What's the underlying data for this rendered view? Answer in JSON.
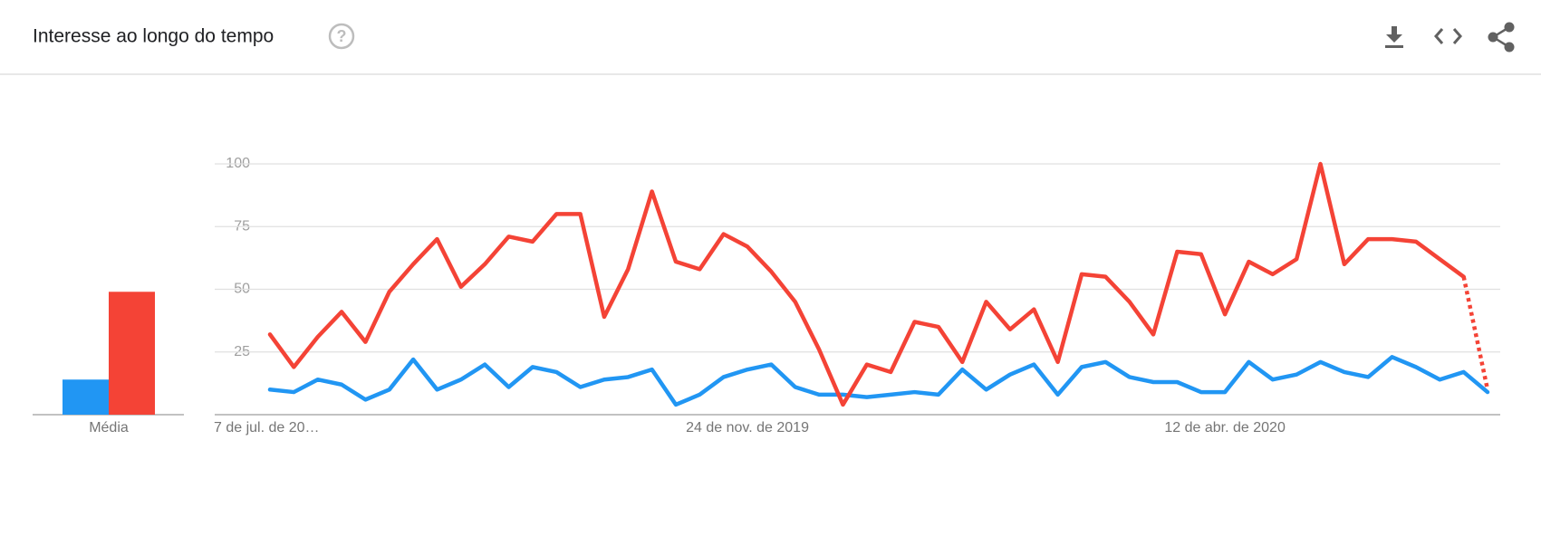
{
  "header": {
    "title": "Interesse ao longo do tempo"
  },
  "chart_data": {
    "type": "line",
    "categories": [
      "7 de jul. de 20…",
      null,
      null,
      null,
      null,
      null,
      null,
      null,
      null,
      null,
      null,
      null,
      null,
      null,
      null,
      null,
      null,
      null,
      null,
      null,
      "24 de nov. de 2019",
      null,
      null,
      null,
      null,
      null,
      null,
      null,
      null,
      null,
      null,
      null,
      null,
      null,
      null,
      null,
      null,
      null,
      null,
      null,
      "12 de abr. de 2020",
      null,
      null,
      null,
      null,
      null,
      null,
      null,
      null,
      null,
      null,
      null
    ],
    "series": [
      {
        "color": "#2196f3",
        "values": [
          10,
          9,
          14,
          12,
          6,
          10,
          22,
          10,
          14,
          20,
          11,
          19,
          17,
          11,
          14,
          15,
          18,
          4,
          8,
          15,
          18,
          20,
          11,
          8,
          8,
          7,
          8,
          9,
          8,
          18,
          10,
          16,
          20,
          8,
          19,
          21,
          15,
          13,
          13,
          9,
          9,
          21,
          14,
          16,
          21,
          17,
          15,
          23,
          19,
          14,
          17,
          9
        ],
        "average": 14,
        "dotted_last_segment": false
      },
      {
        "color": "#f44336",
        "values": [
          32,
          19,
          31,
          41,
          29,
          49,
          60,
          70,
          51,
          60,
          71,
          69,
          80,
          80,
          39,
          58,
          89,
          61,
          58,
          72,
          67,
          57,
          45,
          26,
          4,
          20,
          17,
          37,
          35,
          21,
          45,
          34,
          42,
          21,
          56,
          55,
          45,
          32,
          65,
          64,
          40,
          61,
          56,
          62,
          100,
          60,
          70,
          70,
          69,
          62,
          55,
          10
        ],
        "average": 49,
        "dotted_last_segment": true
      }
    ],
    "average_label": "Média",
    "ylim": [
      0,
      100
    ],
    "yticks": [
      25,
      50,
      75,
      100
    ],
    "grid": true
  }
}
